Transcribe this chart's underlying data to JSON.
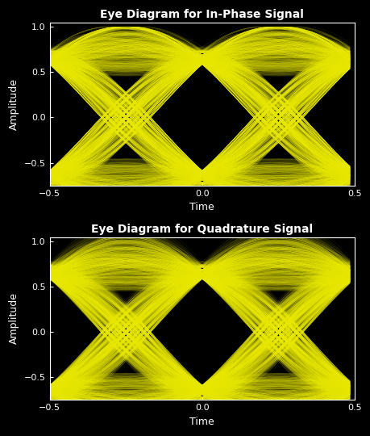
{
  "title1": "Eye Diagram for In-Phase Signal",
  "title2": "Eye Diagram for Quadrature Signal",
  "xlabel": "Time",
  "ylabel": "Amplitude",
  "xlim": [
    -0.5,
    0.5
  ],
  "ylim": [
    -0.75,
    1.05
  ],
  "yticks": [
    -0.5,
    0,
    0.5,
    1
  ],
  "xticks": [
    -0.5,
    0,
    0.5
  ],
  "line_color": "#ffff00",
  "bg_color": "#000000",
  "fg_color": "#ffffff",
  "title_fontsize": 10,
  "label_fontsize": 9,
  "tick_fontsize": 8,
  "line_alpha": 0.08,
  "line_width": 0.3,
  "num_traces": 800,
  "sps": 32,
  "rolloff": 0.35,
  "num_symbols": 20,
  "seed": 42
}
